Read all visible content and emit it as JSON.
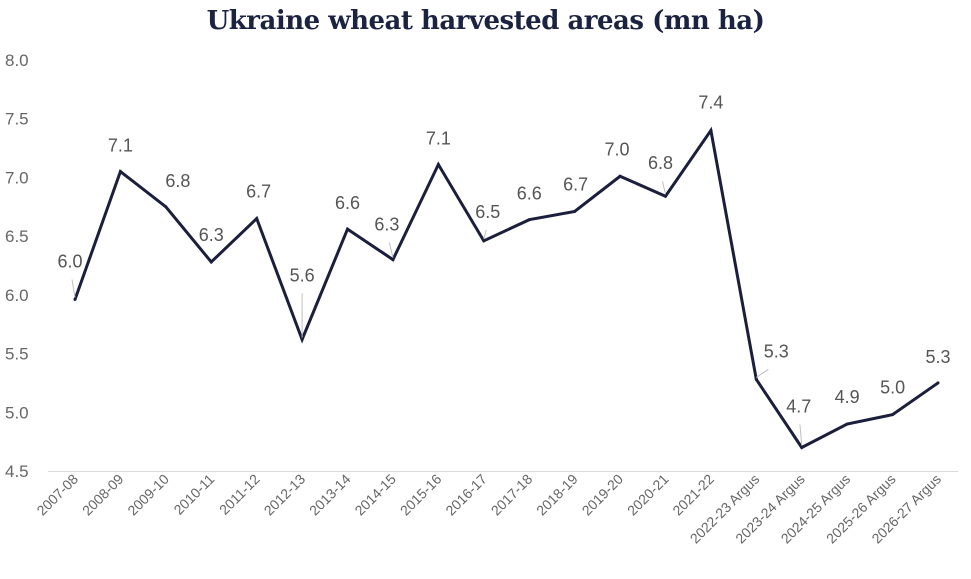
{
  "chart_data": {
    "type": "line",
    "title": "Ukraine wheat harvested areas (mn ha)",
    "xlabel": "",
    "ylabel": "",
    "ylim": [
      4.5,
      8.0
    ],
    "yticks": [
      "4.5",
      "5.0",
      "5.5",
      "6.0",
      "6.5",
      "7.0",
      "7.5",
      "8.0"
    ],
    "grid": false,
    "legend": "none",
    "line_color": "#1b1f3b",
    "categories": [
      "2007-08",
      "2008-09",
      "2009-10",
      "2010-11",
      "2011-12",
      "2012-13",
      "2013-14",
      "2014-15",
      "2015-16",
      "2016-17",
      "2017-18",
      "2018-19",
      "2019-20",
      "2020-21",
      "2021-22",
      "2022-23 Argus",
      "2023-24 Argus",
      "2024-25 Argus",
      "2025-26 Argus",
      "2026-27 Argus"
    ],
    "values": [
      5.96,
      7.05,
      6.75,
      6.28,
      6.65,
      5.62,
      6.56,
      6.3,
      7.11,
      6.46,
      6.64,
      6.71,
      7.01,
      6.84,
      7.4,
      5.28,
      4.7,
      4.9,
      4.98,
      5.25
    ],
    "data_labels": [
      "6.0",
      "7.1",
      "6.8",
      "6.3",
      "6.7",
      "5.6",
      "6.6",
      "6.3",
      "7.1",
      "6.5",
      "6.6",
      "6.7",
      "7.0",
      "6.8",
      "7.4",
      "5.3",
      "4.7",
      "4.9",
      "5.0",
      "5.3"
    ]
  }
}
